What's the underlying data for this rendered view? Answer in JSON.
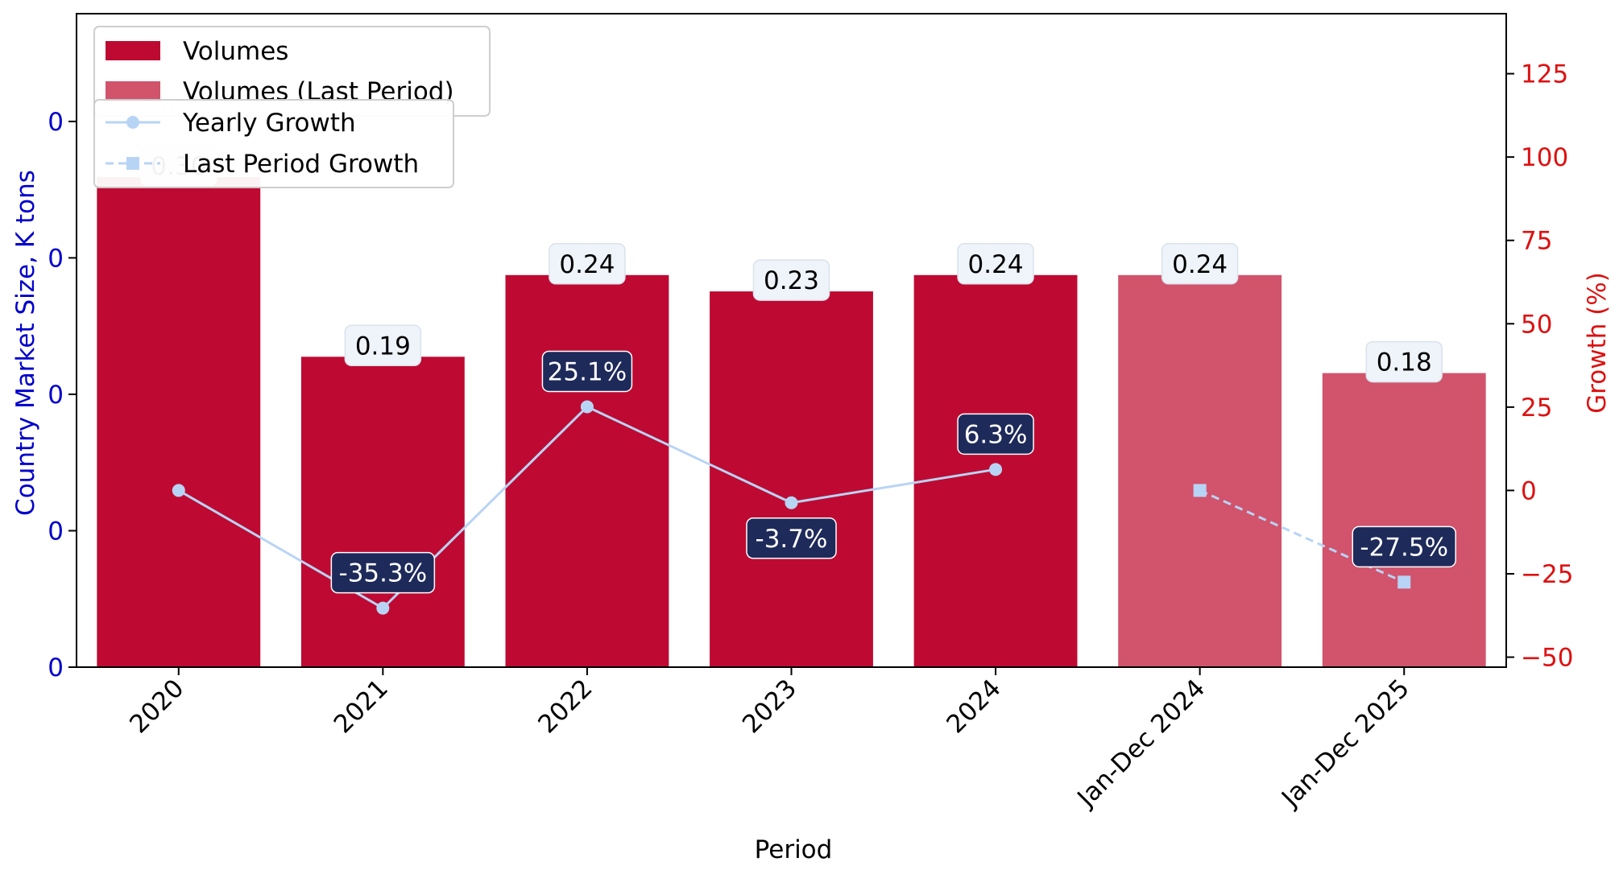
{
  "chart_data": {
    "type": "bar",
    "title": "",
    "xlabel": "Period",
    "ylabel": "Country Market Size, K tons",
    "y2label": "Growth (%)",
    "categories": [
      "2020",
      "2021",
      "2022",
      "2023",
      "2024",
      "Jan-Dec 2024",
      "Jan-Dec 2025"
    ],
    "series": [
      {
        "name": "Volumes",
        "kind": "bar",
        "color": "#be0a32",
        "values": [
          0.3,
          0.19,
          0.24,
          0.23,
          0.24,
          null,
          null
        ],
        "labels": [
          "0.30",
          "0.19",
          "0.24",
          "0.23",
          "0.24",
          "",
          ""
        ]
      },
      {
        "name": "Volumes (Last Period)",
        "kind": "bar",
        "color": "#d1536c",
        "values": [
          null,
          null,
          null,
          null,
          null,
          0.24,
          0.18
        ],
        "labels": [
          "",
          "",
          "",
          "",
          "",
          "0.24",
          "0.18"
        ]
      },
      {
        "name": "Yearly Growth",
        "kind": "line",
        "axis": "right",
        "color": "#b8d4f5",
        "values": [
          0,
          -35.3,
          25.1,
          -3.7,
          6.3,
          null,
          null
        ],
        "labels": [
          "",
          "-35.3%",
          "25.1%",
          "-3.7%",
          "6.3%",
          "",
          ""
        ]
      },
      {
        "name": "Last Period Growth",
        "kind": "line",
        "axis": "right",
        "color": "#b8d4f5",
        "values": [
          null,
          null,
          null,
          null,
          null,
          0,
          -27.5
        ],
        "labels": [
          "",
          "",
          "",
          "",
          "",
          "",
          "-27.5%"
        ]
      }
    ],
    "y_left_ticks": [
      "0",
      "0",
      "0",
      "0",
      "0",
      "0"
    ],
    "y_left_range": [
      0,
      0.4
    ],
    "y_right_ticks": [
      -50,
      -25,
      0,
      25,
      50,
      75,
      100,
      125
    ],
    "y_right_range": [
      -53,
      143
    ],
    "grid": false,
    "legend_placement": "top-left",
    "left_axis_color": "#0000cc",
    "right_axis_color": "#dd1111",
    "bar_label_bg": "#eef4fa",
    "growth_label_bg": "#1e2a5a"
  }
}
